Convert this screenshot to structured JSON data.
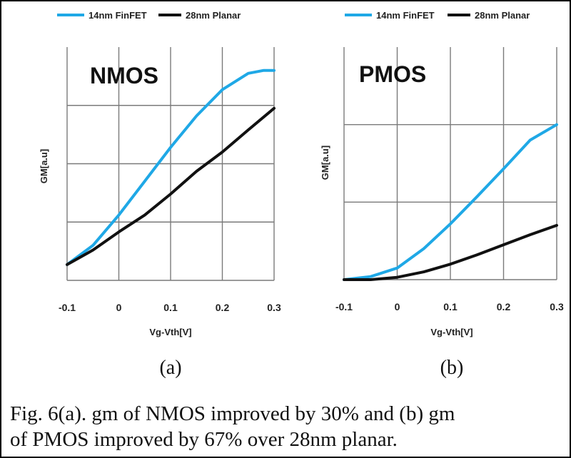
{
  "colors": {
    "finfet": "#1fa8e6",
    "planar": "#111111",
    "grid": "#7a7a7a"
  },
  "legend": {
    "finfet_label": "14nm FinFET",
    "planar_label": "28nm Planar"
  },
  "chart_data": [
    {
      "type": "line",
      "title": "NMOS",
      "sublabel": "(a)",
      "xlabel": "Vg-Vth[V]",
      "ylabel": "GM[a.u]",
      "xlim": [
        -0.1,
        0.3
      ],
      "ylim": [
        0,
        4
      ],
      "x_ticks": [
        -0.1,
        0,
        0.1,
        0.2,
        0.3
      ],
      "x_tick_labels": [
        "-0.1",
        "0",
        "0.1",
        "0.2",
        "0.3"
      ],
      "y_gridlines": [
        1,
        2,
        3
      ],
      "series": [
        {
          "name": "14nm FinFET",
          "x": [
            -0.1,
            -0.05,
            0,
            0.05,
            0.1,
            0.15,
            0.2,
            0.25,
            0.28,
            0.3
          ],
          "y": [
            0.27,
            0.6,
            1.12,
            1.7,
            2.28,
            2.82,
            3.27,
            3.55,
            3.6,
            3.6
          ]
        },
        {
          "name": "28nm Planar",
          "x": [
            -0.1,
            -0.05,
            0,
            0.05,
            0.1,
            0.15,
            0.2,
            0.25,
            0.3
          ],
          "y": [
            0.27,
            0.52,
            0.83,
            1.12,
            1.48,
            1.87,
            2.2,
            2.58,
            2.95
          ]
        }
      ]
    },
    {
      "type": "line",
      "title": "PMOS",
      "sublabel": "(b)",
      "xlabel": "Vg-Vth[V]",
      "ylabel": "GM[a.u]",
      "xlim": [
        -0.1,
        0.3
      ],
      "ylim": [
        0,
        3
      ],
      "x_ticks": [
        -0.1,
        0,
        0.1,
        0.2,
        0.3
      ],
      "x_tick_labels": [
        "-0.1",
        "0",
        "0.1",
        "0.2",
        "0.3"
      ],
      "y_gridlines": [
        1,
        2
      ],
      "series": [
        {
          "name": "14nm FinFET",
          "x": [
            -0.1,
            -0.05,
            0,
            0.05,
            0.1,
            0.15,
            0.2,
            0.25,
            0.3
          ],
          "y": [
            0.0,
            0.04,
            0.15,
            0.4,
            0.72,
            1.07,
            1.43,
            1.8,
            2.0
          ]
        },
        {
          "name": "28nm Planar",
          "x": [
            -0.1,
            -0.05,
            0,
            0.05,
            0.1,
            0.15,
            0.2,
            0.25,
            0.3
          ],
          "y": [
            0.0,
            0.0,
            0.03,
            0.1,
            0.2,
            0.32,
            0.45,
            0.58,
            0.7
          ]
        }
      ]
    }
  ],
  "caption": {
    "line1": "Fig. 6(a). gm of NMOS improved by 30% and (b) gm",
    "line2": "of PMOS improved by 67% over 28nm planar."
  }
}
